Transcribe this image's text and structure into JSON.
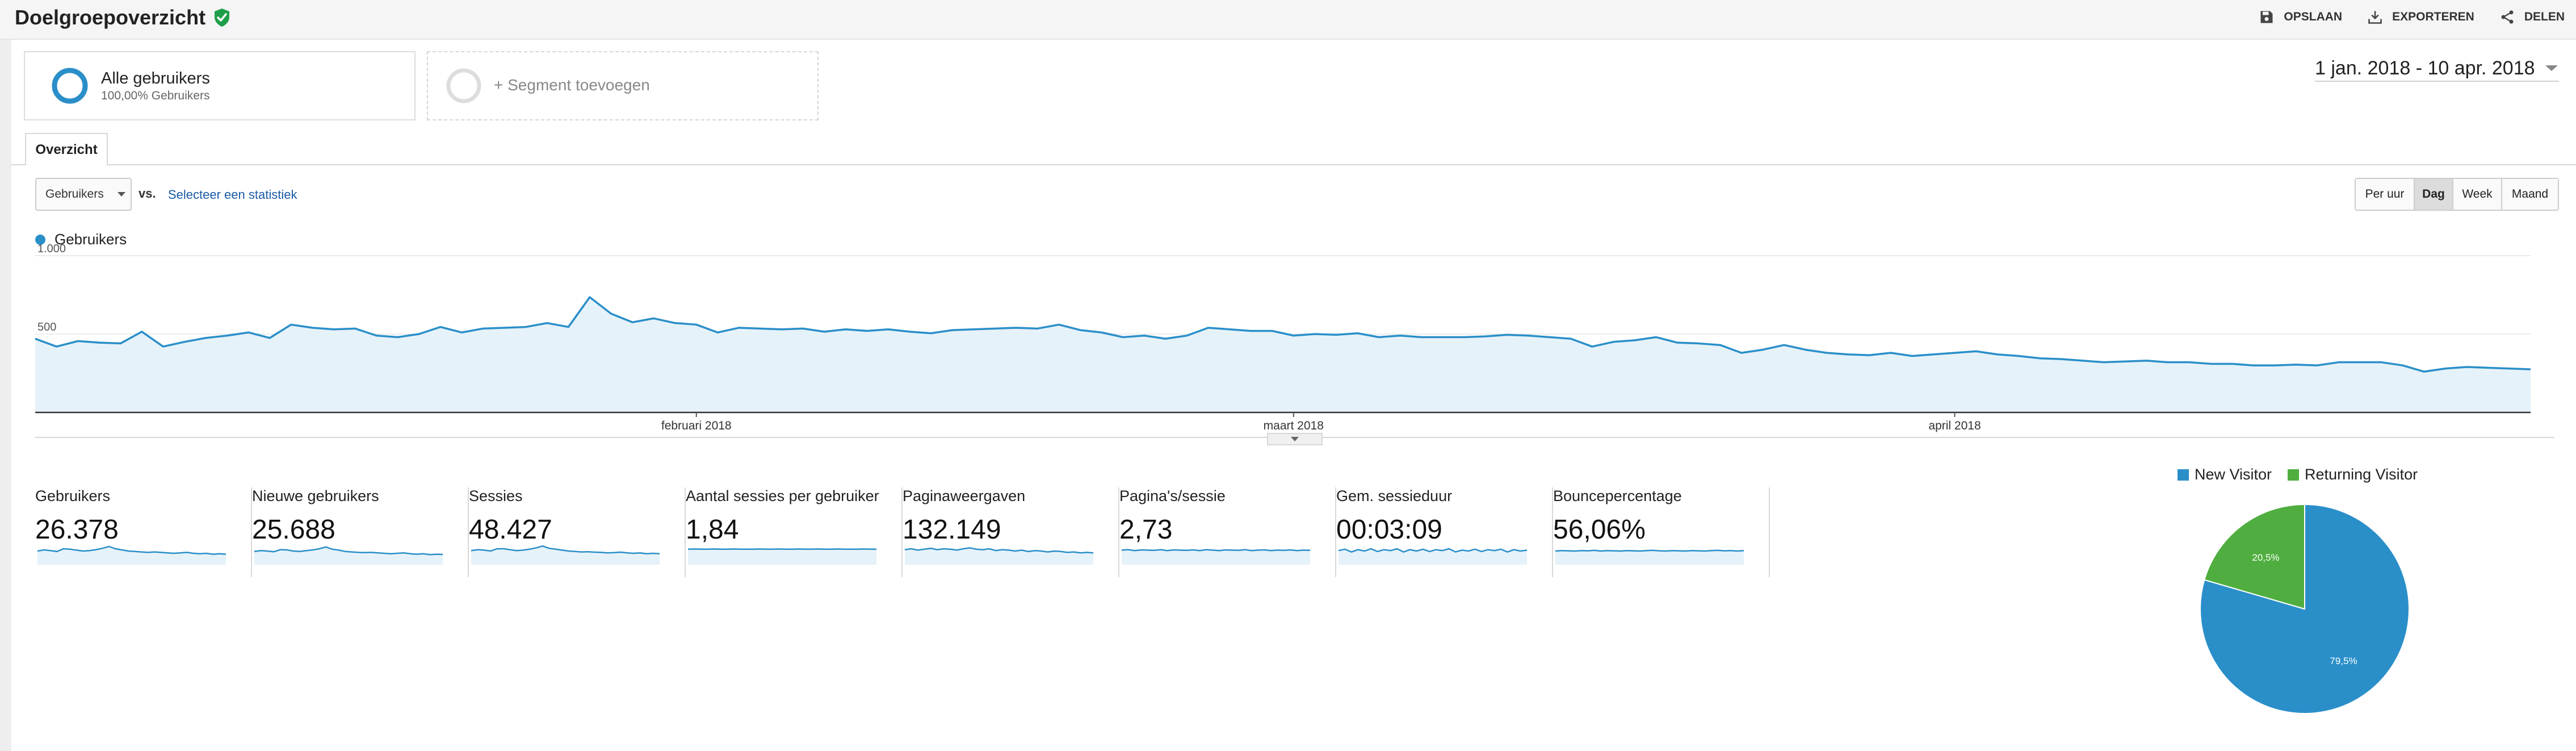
{
  "header": {
    "title": "Doelgroepoverzicht",
    "actions": [
      {
        "label": "OPSLAAN",
        "icon": "save-icon"
      },
      {
        "label": "EXPORTEREN",
        "icon": "download-icon"
      },
      {
        "label": "DELEN",
        "icon": "share-icon"
      }
    ]
  },
  "segments": {
    "active": {
      "name": "Alle gebruikers",
      "sub": "100,00% Gebruikers"
    },
    "add_label": "+ Segment toevoegen"
  },
  "date_range": "1 jan. 2018 - 10 apr. 2018",
  "tabs": [
    {
      "label": "Overzicht",
      "active": true
    }
  ],
  "controls": {
    "metric": "Gebruikers",
    "vs": "vs.",
    "select_stat": "Selecteer een statistiek",
    "granularity": [
      {
        "label": "Per uur",
        "active": false
      },
      {
        "label": "Dag",
        "active": true
      },
      {
        "label": "Week",
        "active": false
      },
      {
        "label": "Maand",
        "active": false
      }
    ]
  },
  "colors": {
    "series": "#2a8fc9",
    "area": "#e6f2f9",
    "new_visitor": "#2a8fc9",
    "returning_visitor": "#4fae3f"
  },
  "chart_data": [
    {
      "type": "line",
      "series": [
        {
          "name": "Gebruikers",
          "values": [
            470,
            420,
            455,
            445,
            440,
            515,
            420,
            450,
            475,
            490,
            510,
            475,
            560,
            540,
            530,
            535,
            490,
            480,
            500,
            545,
            510,
            535,
            540,
            545,
            570,
            545,
            735,
            630,
            575,
            600,
            570,
            560,
            510,
            540,
            535,
            530,
            535,
            515,
            530,
            520,
            530,
            515,
            505,
            525,
            530,
            535,
            540,
            535,
            560,
            525,
            510,
            480,
            490,
            470,
            490,
            540,
            530,
            520,
            520,
            490,
            500,
            495,
            505,
            480,
            490,
            480,
            480,
            480,
            485,
            495,
            490,
            480,
            470,
            420,
            450,
            460,
            480,
            445,
            440,
            430,
            380,
            400,
            430,
            400,
            380,
            370,
            365,
            380,
            360,
            370,
            380,
            390,
            370,
            360,
            345,
            340,
            330,
            320,
            325,
            330,
            320,
            320,
            310,
            310,
            300,
            300,
            305,
            300,
            320,
            320,
            320,
            300,
            260,
            280,
            290,
            285,
            280,
            275
          ]
        }
      ],
      "x_range": [
        "1 jan. 2018",
        "10 apr. 2018"
      ],
      "x_tick_labels": [
        "februari 2018",
        "maart 2018",
        "april 2018"
      ],
      "y_ticks": [
        "1.000",
        "500"
      ],
      "ylim": [
        0,
        1000
      ],
      "grid": true,
      "legend": "top-left"
    },
    {
      "type": "pie",
      "labels": [
        "New Visitor",
        "Returning Visitor"
      ],
      "values": [
        79.5,
        20.5
      ],
      "value_labels": [
        "79,5%",
        "20,5%"
      ],
      "legend": "top"
    }
  ],
  "metrics": [
    {
      "label": "Gebruikers",
      "value": "26.378",
      "spark": [
        50,
        55,
        52,
        48,
        60,
        58,
        54,
        50,
        52,
        56,
        62,
        70,
        60,
        55,
        50,
        48,
        46,
        44,
        46,
        44,
        42,
        40,
        42,
        44,
        40,
        38,
        40,
        36,
        38,
        36
      ]
    },
    {
      "label": "Nieuwe gebruikers",
      "value": "25.688",
      "spark": [
        48,
        52,
        50,
        47,
        56,
        55,
        50,
        48,
        52,
        55,
        60,
        68,
        58,
        54,
        48,
        46,
        44,
        43,
        44,
        42,
        40,
        38,
        40,
        42,
        38,
        36,
        38,
        34,
        36,
        35
      ]
    },
    {
      "label": "Sessies",
      "value": "48.427",
      "spark": [
        52,
        56,
        54,
        50,
        60,
        60,
        56,
        52,
        54,
        58,
        64,
        72,
        62,
        58,
        54,
        50,
        48,
        46,
        47,
        45,
        44,
        42,
        43,
        45,
        42,
        40,
        42,
        38,
        40,
        38
      ]
    },
    {
      "label": "Aantal sessies per gebruiker",
      "value": "1,84",
      "spark": [
        58,
        59,
        58,
        58,
        59,
        58,
        58,
        59,
        58,
        58,
        58,
        59,
        58,
        58,
        59,
        58,
        58,
        59,
        58,
        58,
        59,
        58,
        58,
        59,
        58,
        58,
        58,
        59,
        58,
        58
      ]
    },
    {
      "label": "Paginaweergaven",
      "value": "132.149",
      "spark": [
        56,
        60,
        54,
        58,
        62,
        56,
        60,
        58,
        54,
        60,
        64,
        58,
        56,
        60,
        52,
        56,
        54,
        50,
        54,
        48,
        52,
        50,
        46,
        50,
        48,
        44,
        46,
        42,
        44,
        42
      ]
    },
    {
      "label": "Pagina's/sessie",
      "value": "2,73",
      "spark": [
        54,
        56,
        52,
        55,
        54,
        53,
        56,
        52,
        55,
        54,
        53,
        55,
        52,
        56,
        54,
        52,
        55,
        54,
        53,
        56,
        52,
        54,
        55,
        52,
        54,
        53,
        55,
        52,
        54,
        53
      ]
    },
    {
      "label": "Gem. sessieduur",
      "value": "00:03:09",
      "spark": [
        52,
        58,
        46,
        56,
        50,
        60,
        48,
        56,
        52,
        60,
        46,
        56,
        50,
        58,
        48,
        56,
        52,
        60,
        46,
        54,
        50,
        58,
        48,
        56,
        52,
        58,
        46,
        56,
        50,
        54
      ]
    },
    {
      "label": "Bouncepercentage",
      "value": "56,06%",
      "spark": [
        50,
        52,
        51,
        50,
        52,
        51,
        53,
        50,
        52,
        51,
        50,
        52,
        51,
        50,
        52,
        53,
        51,
        50,
        52,
        51,
        50,
        52,
        51,
        50,
        52,
        53,
        51,
        52,
        50,
        52
      ]
    }
  ]
}
